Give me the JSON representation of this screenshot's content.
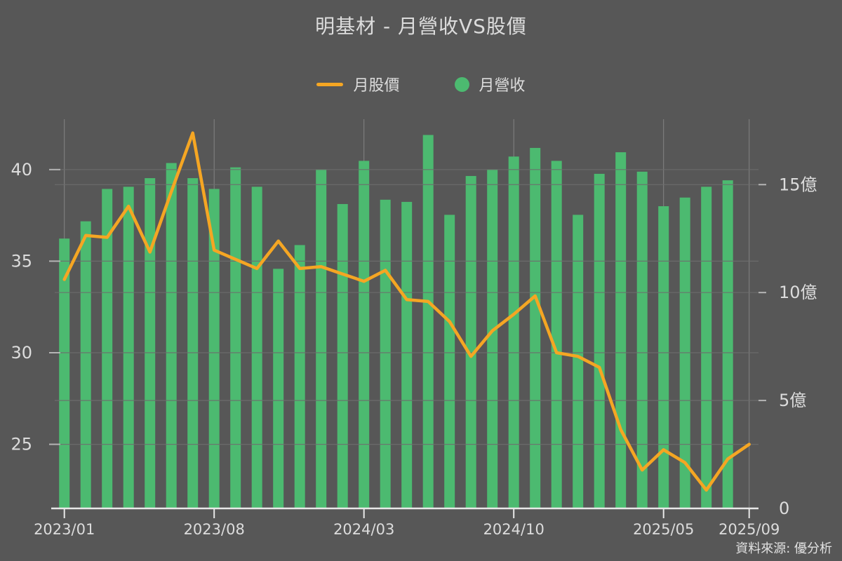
{
  "title": "明基材 - 月營收VS股價",
  "legend": {
    "price_label": "月股價",
    "revenue_label": "月營收"
  },
  "source_note": "資料來源: 優分析",
  "colors": {
    "background": "#575757",
    "bar_green": "#4cba70",
    "line_orange": "#f5a623",
    "text_light": "#dcdcdc",
    "grid_horizontal": "#6e6e6e",
    "grid_vertical": "#8e8e8e",
    "axis_line": "#e8e8e8"
  },
  "chart_data": {
    "type": "combo",
    "categories": [
      "2023/01",
      "2023/02",
      "2023/03",
      "2023/04",
      "2023/05",
      "2023/06",
      "2023/07",
      "2023/08",
      "2023/09",
      "2023/10",
      "2023/11",
      "2023/12",
      "2024/01",
      "2024/02",
      "2024/03",
      "2024/04",
      "2024/05",
      "2024/06",
      "2024/07",
      "2024/08",
      "2024/09",
      "2024/10",
      "2024/11",
      "2024/12",
      "2025/01",
      "2025/02",
      "2025/03",
      "2025/04",
      "2025/05",
      "2025/06",
      "2025/07",
      "2025/08",
      "2025/09"
    ],
    "series": [
      {
        "name": "月營收",
        "type": "bar",
        "axis": "right",
        "unit": "億",
        "values": [
          12.5,
          13.3,
          14.8,
          14.9,
          15.3,
          16.0,
          15.3,
          14.8,
          15.8,
          14.9,
          11.1,
          12.2,
          15.7,
          14.1,
          16.1,
          14.3,
          14.2,
          17.3,
          13.6,
          15.4,
          15.7,
          16.3,
          16.7,
          16.1,
          13.6,
          15.5,
          16.5,
          15.6,
          14.0,
          14.4,
          14.9,
          15.2,
          null
        ]
      },
      {
        "name": "月股價",
        "type": "line",
        "axis": "left",
        "values": [
          34.0,
          36.4,
          36.3,
          38.0,
          35.5,
          38.8,
          42.0,
          35.6,
          35.1,
          34.6,
          36.1,
          34.6,
          34.7,
          34.3,
          33.9,
          34.5,
          32.9,
          32.8,
          31.7,
          29.8,
          31.2,
          32.1,
          33.1,
          30.0,
          29.8,
          29.2,
          25.8,
          23.6,
          24.7,
          24.0,
          22.5,
          24.2,
          25.0
        ]
      }
    ],
    "left_axis": {
      "ticks": [
        25,
        30,
        35,
        40
      ],
      "tick_labels": [
        "25",
        "30",
        "35",
        "40"
      ],
      "range": [
        21.5,
        42.75
      ]
    },
    "right_axis": {
      "ticks": [
        0,
        5,
        10,
        15
      ],
      "tick_labels": [
        "0",
        "5億",
        "10億",
        "15億"
      ],
      "range": [
        0,
        18.03
      ]
    },
    "x_axis": {
      "tick_indices": [
        0,
        7,
        14,
        21,
        28,
        32
      ],
      "tick_labels": [
        "2023/01",
        "2023/08",
        "2024/03",
        "2024/10",
        "2025/05",
        "2025/09"
      ]
    },
    "grid": true,
    "legend_position": "top-center"
  }
}
